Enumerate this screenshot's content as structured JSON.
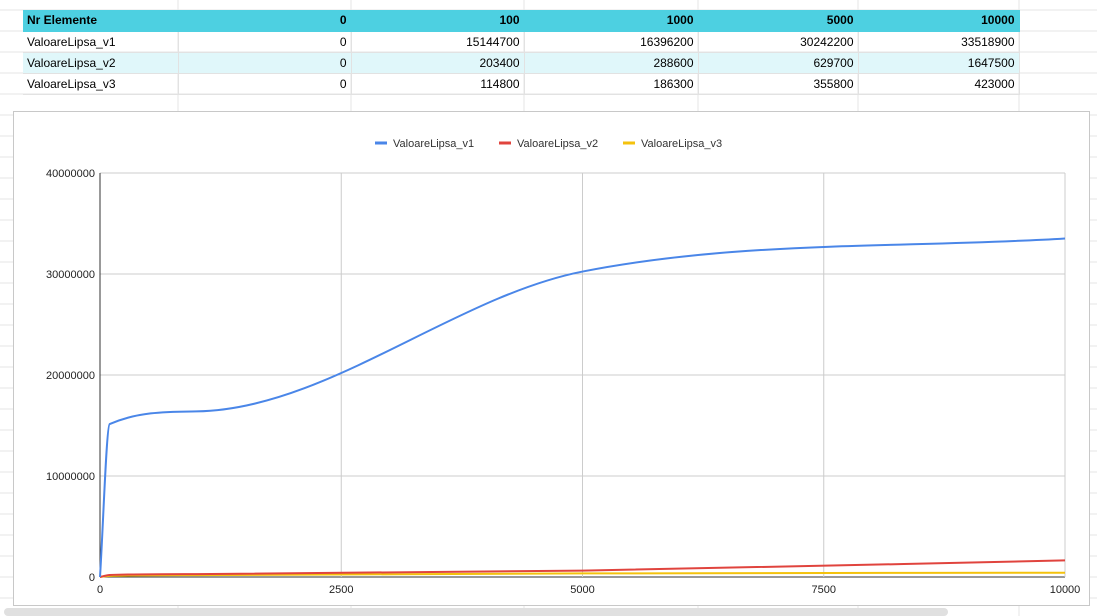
{
  "table": {
    "header": [
      "Nr Elemente",
      "0",
      "100",
      "1000",
      "5000",
      "10000"
    ],
    "rows": [
      [
        "ValoareLipsa_v1",
        "0",
        "15144700",
        "16396200",
        "30242200",
        "33518900"
      ],
      [
        "ValoareLipsa_v2",
        "0",
        "203400",
        "288600",
        "629700",
        "1647500"
      ],
      [
        "ValoareLipsa_v3",
        "0",
        "114800",
        "186300",
        "355800",
        "423000"
      ]
    ]
  },
  "chart_data": {
    "type": "line",
    "x": [
      0,
      100,
      1000,
      5000,
      10000
    ],
    "series": [
      {
        "name": "ValoareLipsa_v1",
        "color": "#4a86e8",
        "values": [
          0,
          15144700,
          16396200,
          30242200,
          33518900
        ]
      },
      {
        "name": "ValoareLipsa_v2",
        "color": "#e0443e",
        "values": [
          0,
          203400,
          288600,
          629700,
          1647500
        ]
      },
      {
        "name": "ValoareLipsa_v3",
        "color": "#f4c20d",
        "values": [
          0,
          114800,
          186300,
          355800,
          423000
        ]
      }
    ],
    "xlim": [
      0,
      10000
    ],
    "ylim": [
      0,
      40000000
    ],
    "xticks": [
      "0",
      "2500",
      "5000",
      "7500",
      "10000"
    ],
    "yticks": [
      "0",
      "10000000",
      "20000000",
      "30000000",
      "40000000"
    ],
    "legend": "top",
    "grid": true,
    "smooth": true
  }
}
